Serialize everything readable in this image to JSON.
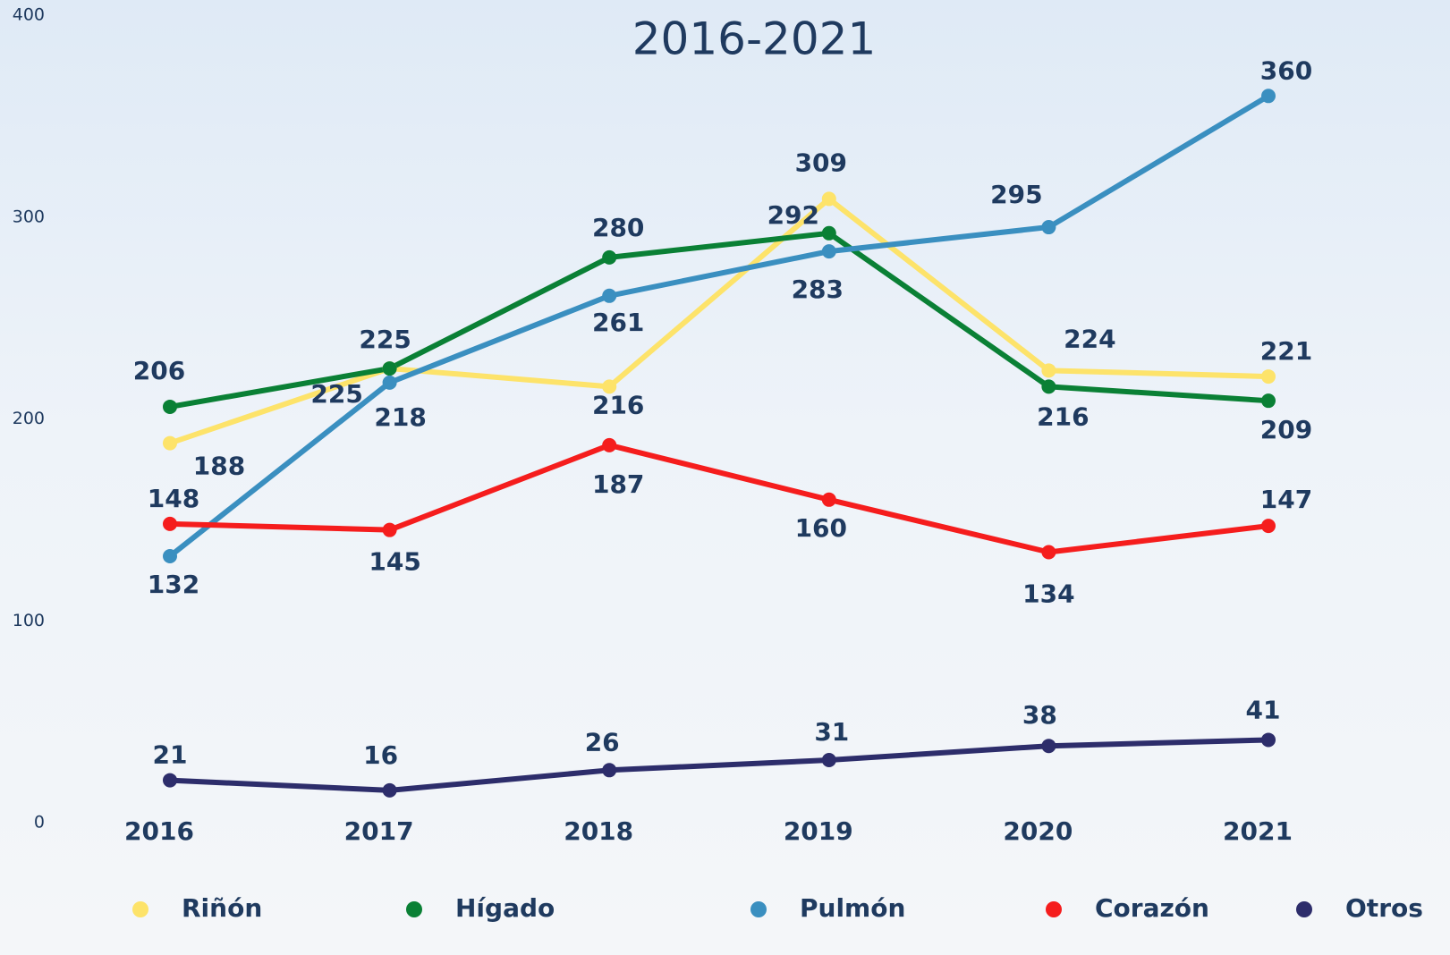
{
  "chart_data": {
    "type": "line",
    "title": "2016-2021",
    "categories": [
      "2016",
      "2017",
      "2018",
      "2019",
      "2020",
      "2021"
    ],
    "series": [
      {
        "name": "Riñón",
        "color": "#fde36a",
        "values": [
          188,
          225,
          216,
          309,
          224,
          221
        ]
      },
      {
        "name": "Hígado",
        "color": "#0a8035",
        "values": [
          206,
          225,
          280,
          292,
          216,
          209
        ]
      },
      {
        "name": "Pulmón",
        "color": "#3a8fc0",
        "values": [
          132,
          218,
          261,
          283,
          295,
          360
        ]
      },
      {
        "name": "Corazón",
        "color": "#f51d1d",
        "values": [
          148,
          145,
          187,
          160,
          134,
          147
        ]
      },
      {
        "name": "Otros",
        "color": "#2d2d6b",
        "values": [
          21,
          16,
          26,
          31,
          38,
          41
        ]
      }
    ],
    "ylim": [
      0,
      400
    ],
    "yticks": [
      0,
      100,
      200,
      300,
      400
    ],
    "grid": false,
    "legend": "bottom"
  }
}
